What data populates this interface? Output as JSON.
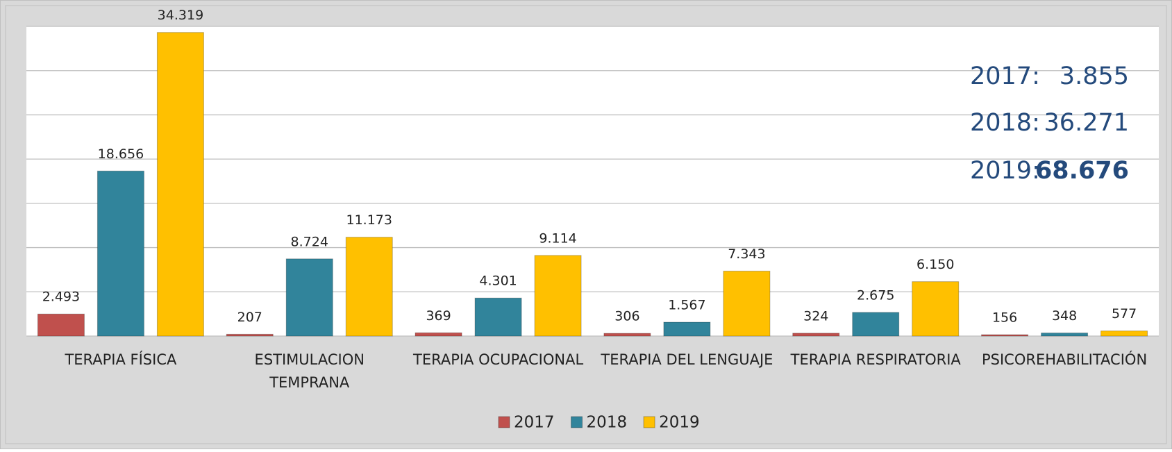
{
  "chart_data": {
    "type": "bar",
    "categories": [
      "TERAPIA FÍSICA",
      "ESTIMULACION\nTEMPRANA",
      "TERAPIA OCUPACIONAL",
      "TERAPIA DEL LENGUAJE",
      "TERAPIA RESPIRATORIA",
      "PSICOREHABILITACIÓN"
    ],
    "series": [
      {
        "name": "2017",
        "color": "#c0504d",
        "values": [
          2493,
          207,
          369,
          306,
          324,
          156
        ],
        "value_labels": [
          "2.493",
          "207",
          "369",
          "306",
          "324",
          "156"
        ]
      },
      {
        "name": "2018",
        "color": "#31849b",
        "values": [
          18656,
          8724,
          4301,
          1567,
          2675,
          348
        ],
        "value_labels": [
          "18.656",
          "8.724",
          "4.301",
          "1.567",
          "2.675",
          "348"
        ]
      },
      {
        "name": "2019",
        "color": "#ffc000",
        "values": [
          34319,
          11173,
          9114,
          7343,
          6150,
          577
        ],
        "value_labels": [
          "34.319",
          "11.173",
          "9.114",
          "7.343",
          "6.150",
          "577"
        ]
      }
    ],
    "ylim": [
      0,
      35000
    ],
    "yticks": [
      0,
      5000,
      10000,
      15000,
      20000,
      25000,
      30000,
      35000
    ],
    "grid": true,
    "legend": "bottom",
    "annotations": [
      {
        "label": "2017:",
        "value": "3.855"
      },
      {
        "label": "2018:",
        "value": "36.271"
      },
      {
        "label": "2019:",
        "value": "68.676"
      }
    ]
  }
}
